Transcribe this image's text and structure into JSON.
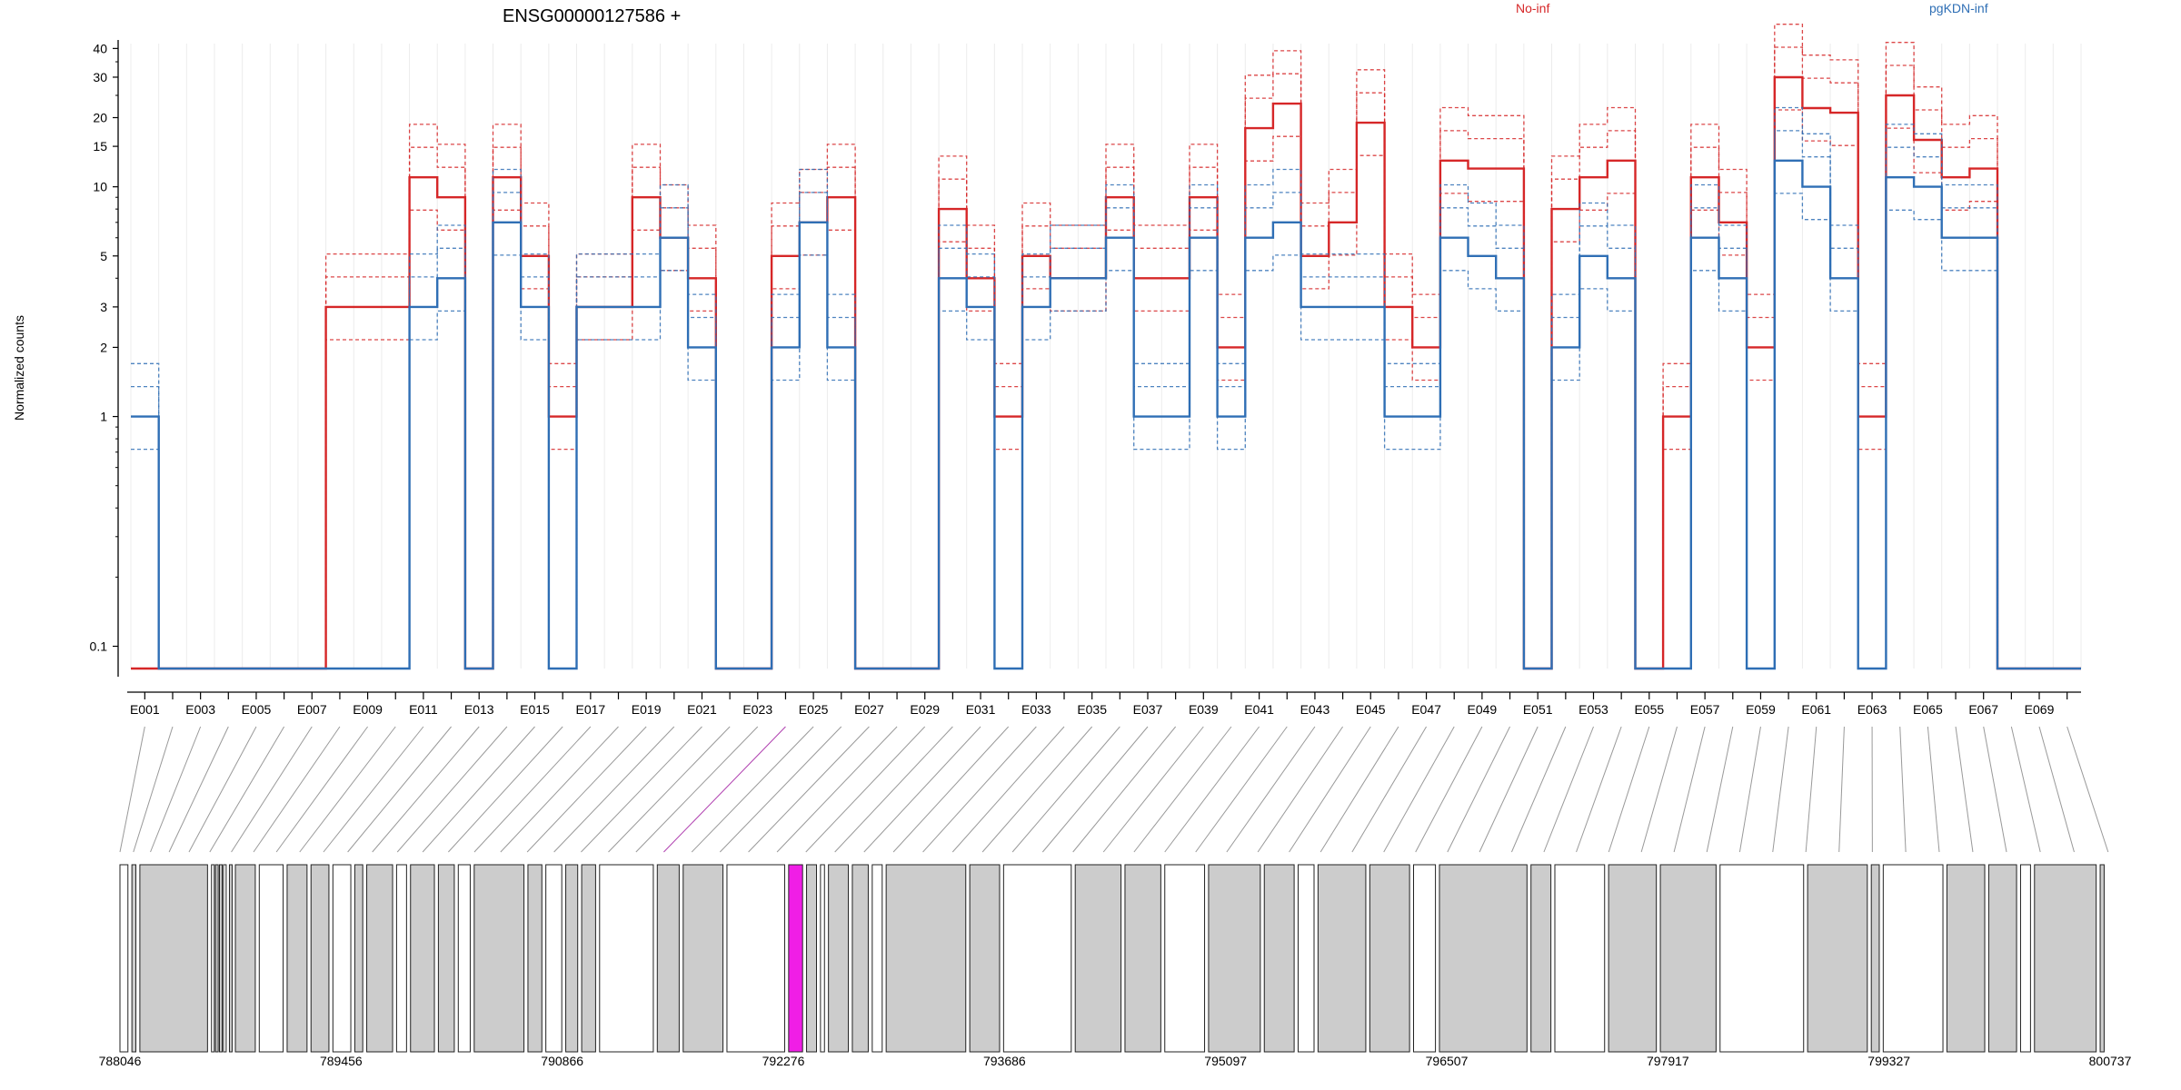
{
  "chart_data": {
    "type": "line",
    "title": "ENSG00000127586 +",
    "ylabel": "Normalized counts",
    "y_scale": "log",
    "ylim": [
      0.08,
      42
    ],
    "y_ticks": [
      {
        "v": 0.1,
        "label": "0.1"
      },
      {
        "v": 1,
        "label": "1"
      },
      {
        "v": 2,
        "label": "2"
      },
      {
        "v": 3,
        "label": "3"
      },
      {
        "v": 5,
        "label": "5"
      },
      {
        "v": 10,
        "label": "10"
      },
      {
        "v": 15,
        "label": "15"
      },
      {
        "v": 20,
        "label": "20"
      },
      {
        "v": 30,
        "label": "30"
      },
      {
        "v": 40,
        "label": "40"
      }
    ],
    "grid": true,
    "legend_placement": "top",
    "exon_count": 70,
    "x_tick_labels": [
      "E001",
      "E003",
      "E005",
      "E007",
      "E009",
      "E011",
      "E013",
      "E015",
      "E017",
      "E019",
      "E021",
      "E023",
      "E025",
      "E027",
      "E029",
      "E031",
      "E033",
      "E035",
      "E037",
      "E039",
      "E041",
      "E043",
      "E045",
      "E047",
      "E049",
      "E051",
      "E053",
      "E055",
      "E057",
      "E059",
      "E061",
      "E063",
      "E065",
      "E067",
      "E069"
    ],
    "highlight_exon": "E024",
    "series": [
      {
        "name": "No-inf",
        "color": "#d62728",
        "values": [
          0.08,
          0.08,
          0.08,
          0.08,
          0.08,
          0.08,
          0.08,
          3,
          3,
          3,
          11,
          9,
          0.08,
          11,
          5,
          1,
          3,
          3,
          9,
          6,
          4,
          0.08,
          0.08,
          5,
          7,
          9,
          0.08,
          0.08,
          0.08,
          8,
          4,
          1,
          5,
          4,
          4,
          9,
          4,
          4,
          9,
          2,
          18,
          23,
          5,
          7,
          19,
          3,
          2,
          13,
          12,
          12,
          0.08,
          8,
          11,
          13,
          0.08,
          1,
          11,
          7,
          2,
          30,
          22,
          21,
          1,
          25,
          16,
          11,
          12,
          0.08,
          0.08,
          0.08
        ]
      },
      {
        "name": "pgKDN-inf",
        "color": "#2f6fb5",
        "values": [
          1,
          0.08,
          0.08,
          0.08,
          0.08,
          0.08,
          0.08,
          0.08,
          0.08,
          0.08,
          3,
          4,
          0.08,
          7,
          3,
          0.08,
          3,
          3,
          3,
          6,
          2,
          0.08,
          0.08,
          2,
          7,
          2,
          0.08,
          0.08,
          0.08,
          4,
          3,
          0.08,
          3,
          4,
          4,
          6,
          1,
          1,
          6,
          1,
          6,
          7,
          3,
          3,
          3,
          1,
          1,
          6,
          5,
          4,
          0.08,
          2,
          5,
          4,
          0.08,
          0.08,
          6,
          4,
          0.08,
          13,
          10,
          4,
          0.08,
          11,
          10,
          6,
          6,
          0.08,
          0.08,
          0.08
        ]
      }
    ],
    "genomic_tick_labels": [
      "788046",
      "789456",
      "790866",
      "792276",
      "793686",
      "795097",
      "796507",
      "797917",
      "799327",
      "800737"
    ]
  }
}
